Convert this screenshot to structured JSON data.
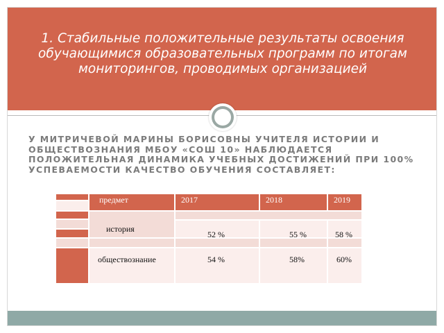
{
  "slide": {
    "title": "1. Стабильные положительные результаты освоения обучающимися образовательных программ по итогам мониторингов, проводимых организацией",
    "subtitle": "У Митричевой Марины Борисовны учителя истории и обществознания МБОУ «СОШ 10» наблюдается положительная динамика учебных достижений при 100% успеваемости качество обучения составляет:"
  },
  "table": {
    "header": {
      "subject": "предмет",
      "y2017": "2017",
      "y2018": "2018",
      "y2019": "2019"
    },
    "rows": [
      {
        "subject": "история",
        "v2017": "52 %",
        "v2018": "55 %",
        "v2019": "58 %"
      },
      {
        "subject": "обществознание",
        "v2017": "54 %",
        "v2018": "58%",
        "v2019": "60%"
      }
    ]
  },
  "colors": {
    "header_bg": "#d2654d",
    "footer_bg": "#8fa9a6",
    "subtitle_text": "#7b7b7b"
  }
}
